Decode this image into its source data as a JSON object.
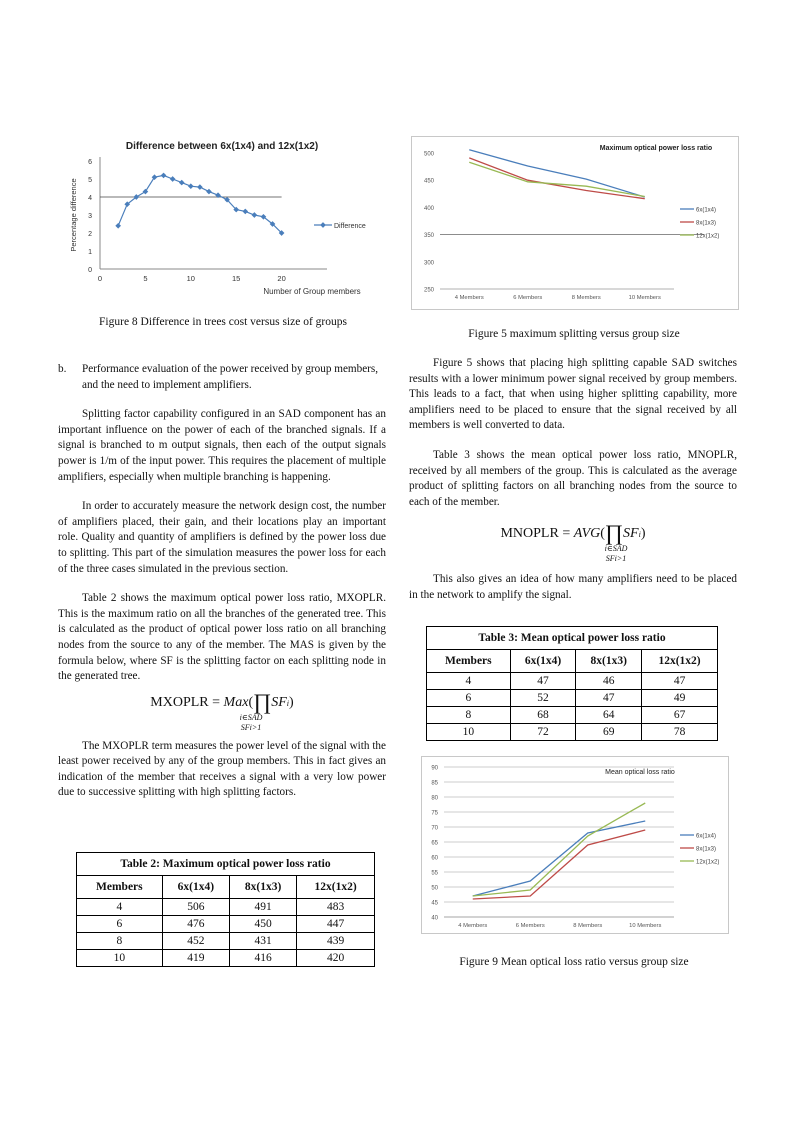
{
  "fig8": {
    "caption": "Figure 8 Difference in trees cost versus size of groups",
    "chart_data": {
      "type": "line",
      "title": "Difference between 6x(1x4) and 12x(1x2)",
      "xlabel": "Number of Group members",
      "ylabel": "Percentage difference",
      "xlim": [
        0,
        25
      ],
      "ylim": [
        0,
        6
      ],
      "x_ticks": [
        "0",
        "5",
        "10",
        "15",
        "20"
      ],
      "y_ticks": [
        "0",
        "1",
        "2",
        "3",
        "4",
        "5",
        "6"
      ],
      "reference_line": 4,
      "series": [
        {
          "name": "Difference",
          "color": "#4a7ebb",
          "x": [
            2,
            3,
            4,
            5,
            6,
            7,
            8,
            9,
            10,
            11,
            12,
            13,
            14,
            15,
            16,
            17,
            18,
            19,
            20
          ],
          "y": [
            2.4,
            3.6,
            4.0,
            4.3,
            5.1,
            5.2,
            5.0,
            4.8,
            4.6,
            4.55,
            4.3,
            4.1,
            3.85,
            3.3,
            3.2,
            3.0,
            2.9,
            2.5,
            2.0
          ]
        }
      ]
    }
  },
  "fig5": {
    "caption": "Figure 5 maximum splitting versus group size",
    "chart_data": {
      "type": "line",
      "title": "Maximum optical power loss ratio",
      "categories": [
        "4 Members",
        "6 Members",
        "8 Members",
        "10 Members"
      ],
      "ylim": [
        250,
        500
      ],
      "y_ticks": [
        "500",
        "450",
        "400",
        "350",
        "300",
        "250"
      ],
      "reference_line": 350,
      "legend": "right",
      "series": [
        {
          "name": "6x(1x4)",
          "color": "#4a7ebb",
          "values": [
            506,
            476,
            452,
            419
          ]
        },
        {
          "name": "8x(1x3)",
          "color": "#be4b48",
          "values": [
            491,
            450,
            431,
            416
          ]
        },
        {
          "name": "12x(1x2)",
          "color": "#98b954",
          "values": [
            483,
            447,
            439,
            420
          ]
        }
      ]
    }
  },
  "fig9": {
    "caption": "Figure 9 Mean optical loss ratio versus group size",
    "chart_data": {
      "type": "line",
      "title": "Mean optical loss ratio",
      "categories": [
        "4 Members",
        "6 Members",
        "8 Members",
        "10 Members"
      ],
      "ylim": [
        40,
        90
      ],
      "y_ticks": [
        "90",
        "85",
        "80",
        "75",
        "70",
        "65",
        "60",
        "55",
        "50",
        "45",
        "40"
      ],
      "legend": "right",
      "series": [
        {
          "name": "6x(1x4)",
          "color": "#4a7ebb",
          "values": [
            47,
            52,
            68,
            72
          ]
        },
        {
          "name": "8x(1x3)",
          "color": "#be4b48",
          "values": [
            46,
            47,
            64,
            69
          ]
        },
        {
          "name": "12x(1x2)",
          "color": "#98b954",
          "values": [
            47,
            49,
            67,
            78
          ]
        }
      ]
    }
  },
  "left": {
    "item_b_marker": "b.",
    "item_b_text": "Performance evaluation of the power received by group members, and the need to implement amplifiers.",
    "p1": "Splitting factor capability configured in an SAD component has an important influence on the power of each of the branched signals. If a signal is branched to m output signals, then each of the output signals power is 1/m of the input power. This requires the placement of multiple amplifiers, especially when multiple branching is happening.",
    "p2": "In order to accurately measure the network design cost, the number of amplifiers placed, their gain, and their locations play an important role. Quality and quantity of amplifiers is defined by the power loss due to splitting. This part of the simulation measures the power loss for each of the three cases simulated in the previous section.",
    "p3": "Table 2 shows the maximum optical power loss ratio, MXOPLR. This is the maximum ratio on all the branches of the generated tree. This is calculated as the product of optical power loss ratio on all branching nodes from the source to any of the member. The MAS is given by the formula below, where SF is the splitting factor on each splitting node in the generated tree.",
    "formula_lhs": "MXOPLR = ",
    "formula_fn": "Max",
    "formula_sub1": "i∈SAD",
    "formula_sub2": "SFi>1",
    "p4": "The MXOPLR term measures the power level of the signal with the least power received by any of the group members. This in fact gives an indication of the member that receives a signal with a very low power due to successive splitting with high splitting factors."
  },
  "table2": {
    "title": "Table 2: Maximum optical power loss ratio",
    "headers": [
      "Members",
      "6x(1x4)",
      "8x(1x3)",
      "12x(1x2)"
    ],
    "rows": [
      [
        "4",
        "506",
        "491",
        "483"
      ],
      [
        "6",
        "476",
        "450",
        "447"
      ],
      [
        "8",
        "452",
        "431",
        "439"
      ],
      [
        "10",
        "419",
        "416",
        "420"
      ]
    ]
  },
  "right": {
    "p1": "Figure 5 shows that placing high splitting capable SAD switches results with a lower minimum power signal received by group members. This leads to a fact, that when using higher splitting capability, more amplifiers need to be placed to ensure that the signal received by all members is well converted to data.",
    "p2": "Table 3 shows the mean optical power loss ratio, MNOPLR, received by all members of the group. This is calculated as the average product of splitting factors on all branching nodes from the source to each of the member.",
    "formula_lhs": "MNOPLR = ",
    "formula_fn": "AVG",
    "formula_sub1": "i∈SAD",
    "formula_sub2": "SFi>1",
    "p3": "This also gives an idea of how many amplifiers need to be placed in the network to amplify the signal."
  },
  "table3": {
    "title": "Table 3: Mean optical power loss ratio",
    "headers": [
      "Members",
      "6x(1x4)",
      "8x(1x3)",
      "12x(1x2)"
    ],
    "rows": [
      [
        "4",
        "47",
        "46",
        "47"
      ],
      [
        "6",
        "52",
        "47",
        "49"
      ],
      [
        "8",
        "68",
        "64",
        "67"
      ],
      [
        "10",
        "72",
        "69",
        "78"
      ]
    ]
  }
}
